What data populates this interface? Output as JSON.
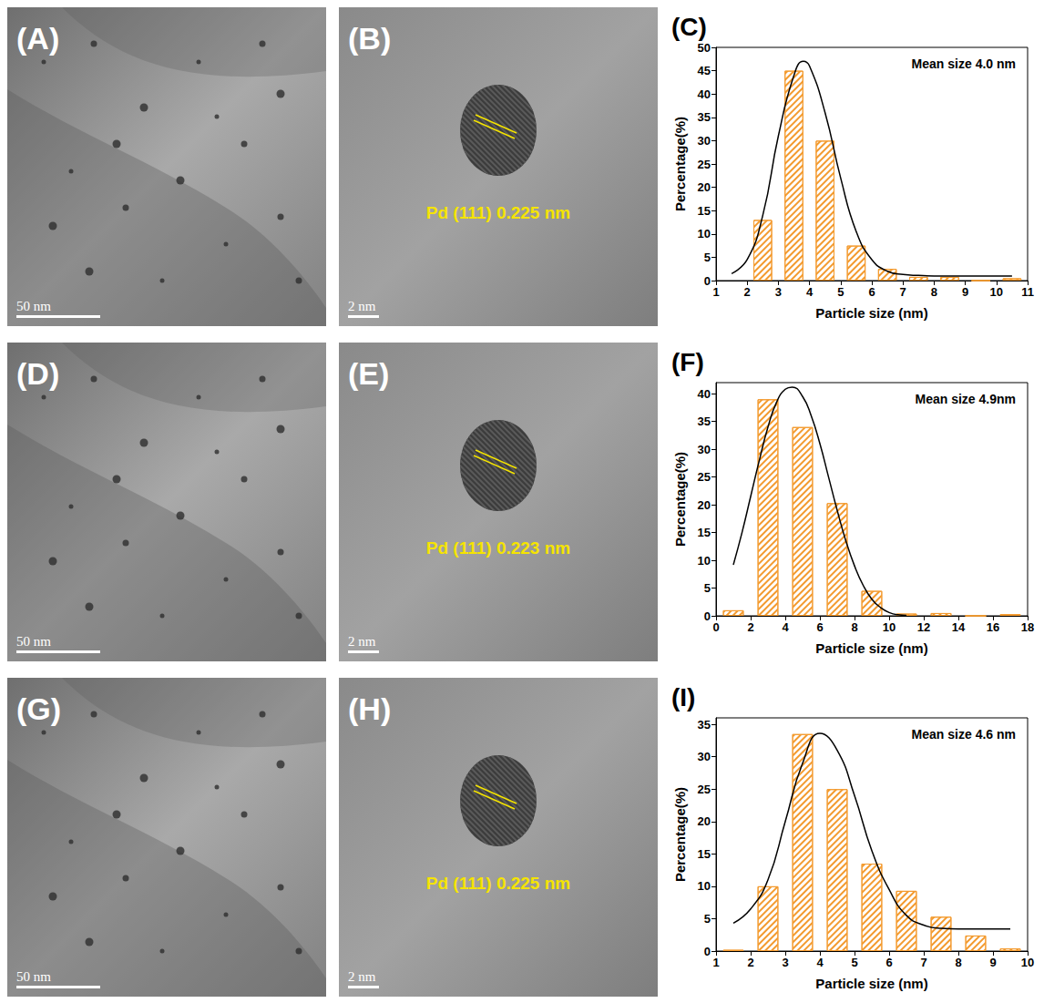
{
  "images": [
    {
      "letter": "(A)",
      "scale_bar": "50 nm"
    },
    {
      "letter": "(B)",
      "scale_bar": "2 nm",
      "annotation": "Pd (111) 0.225 nm"
    },
    {
      "letter": "(D)",
      "scale_bar": "50 nm"
    },
    {
      "letter": "(E)",
      "scale_bar": "2 nm",
      "annotation": "Pd (111) 0.223 nm"
    },
    {
      "letter": "(G)",
      "scale_bar": "50 nm"
    },
    {
      "letter": "(H)",
      "scale_bar": "2 nm",
      "annotation": "Pd (111) 0.225 nm"
    }
  ],
  "chart_data": [
    {
      "type": "histogram",
      "letter": "(C)",
      "annotation": "Mean size 4.0 nm",
      "x_label": "Particle size (nm)",
      "y_label": "Percentage(%)",
      "bins": [
        2,
        3,
        4,
        5,
        6,
        7,
        8,
        9,
        10,
        11
      ],
      "counts": [
        13,
        45,
        30,
        7.5,
        2.5,
        0.8,
        0.8,
        0,
        0.5
      ],
      "color": "#f39a2e",
      "xlim": [
        1,
        11
      ],
      "xticks": [
        1,
        2,
        3,
        4,
        5,
        6,
        7,
        8,
        9,
        10,
        11
      ],
      "ylim": [
        0,
        50
      ],
      "yticks": [
        0,
        5,
        10,
        15,
        20,
        25,
        30,
        35,
        40,
        45,
        50
      ],
      "curve": {
        "type": "line",
        "color": "#000000",
        "x": [
          1.5,
          2,
          2.5,
          3,
          3.5,
          3.8,
          4,
          4.5,
          5,
          5.5,
          6,
          6.5,
          7,
          7.5,
          8,
          9,
          10,
          10.5
        ],
        "values": [
          1.5,
          4.5,
          14,
          31,
          44,
          47,
          46,
          36,
          22,
          10.5,
          4.5,
          2,
          1.3,
          1.1,
          1,
          1,
          1,
          1
        ]
      }
    },
    {
      "type": "histogram",
      "letter": "(F)",
      "annotation": "Mean size 4.9nm",
      "x_label": "Particle size (nm)",
      "y_label": "Percentage(%)",
      "bins": [
        0,
        2,
        4,
        6,
        8,
        10,
        12,
        14,
        16,
        18
      ],
      "counts": [
        1,
        39,
        34,
        20.3,
        4.5,
        0.4,
        0.5,
        0,
        0.3
      ],
      "color": "#f39a2e",
      "xlim": [
        0,
        18
      ],
      "xticks": [
        0,
        2,
        4,
        6,
        8,
        10,
        12,
        14,
        16,
        18
      ],
      "ylim": [
        0,
        42
      ],
      "yticks": [
        0,
        5,
        10,
        15,
        20,
        25,
        30,
        35,
        40
      ],
      "curve": {
        "type": "line",
        "color": "#000000",
        "x": [
          1,
          1.5,
          2,
          2.5,
          3,
          3.5,
          4,
          4.4,
          5,
          5.5,
          6,
          6.5,
          7,
          7.5,
          8,
          8.5,
          9,
          9.5,
          10,
          10.5,
          11
        ],
        "values": [
          9.2,
          15,
          21.5,
          28,
          34,
          38.5,
          40.8,
          41.2,
          39.5,
          36,
          31,
          25,
          19,
          13.5,
          9,
          5.5,
          3,
          1.5,
          0.6,
          0.2,
          0.1
        ]
      }
    },
    {
      "type": "histogram",
      "letter": "(I)",
      "annotation": "Mean size 4.6 nm",
      "x_label": "Particle size (nm)",
      "y_label": "Percentage(%)",
      "bins": [
        1,
        2,
        3,
        4,
        5,
        6,
        7,
        8,
        9,
        10
      ],
      "counts": [
        0.2,
        10,
        33.5,
        25,
        13.5,
        9.3,
        5.3,
        2.4,
        0.4
      ],
      "color": "#f39a2e",
      "xlim": [
        1,
        10
      ],
      "xticks": [
        1,
        2,
        3,
        4,
        5,
        6,
        7,
        8,
        9,
        10
      ],
      "ylim": [
        0,
        36
      ],
      "yticks": [
        0,
        5,
        10,
        15,
        20,
        25,
        30,
        35
      ],
      "curve": {
        "type": "line",
        "color": "#000000",
        "x": [
          1.5,
          2,
          2.5,
          3,
          3.5,
          4,
          4.5,
          5,
          5.5,
          6,
          6.5,
          7,
          7.5,
          8,
          9,
          9.5
        ],
        "values": [
          4.3,
          6.5,
          11,
          20,
          29,
          33.6,
          31,
          24,
          15.5,
          9.5,
          5.5,
          4,
          3.5,
          3.4,
          3.4,
          3.4
        ]
      }
    }
  ]
}
